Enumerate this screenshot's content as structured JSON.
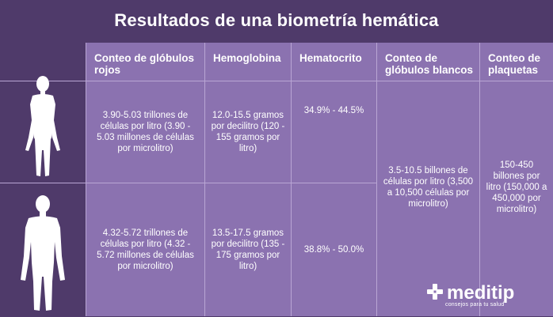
{
  "title": "Resultados de una biometría hemática",
  "headers": [
    "Conteo de glóbulos rojos",
    "Hemoglobina",
    "Hematocrito",
    "Conteo de glóbulos blancos",
    "Conteo de plaquetas"
  ],
  "rows": [
    {
      "figure_icon": "female-silhouette-icon",
      "rbc": "3.90-5.03 trillones de células por litro (3.90 - 5.03 millones de células por microlitro)",
      "hemoglobin": "12.0-15.5 gramos por decilitro (120 - 155 gramos por litro)",
      "hematocrit": "34.9% - 44.5%"
    },
    {
      "figure_icon": "male-silhouette-icon",
      "rbc": "4.32-5.72 trillones de células por litro (4.32 - 5.72 millones de células por microlitro)",
      "hemoglobin": "13.5-17.5 gramos por decilitro (135 - 175 gramos por litro)",
      "hematocrit": "38.8% - 50.0%"
    }
  ],
  "wbc": "3.5-10.5 billones de células por litro (3,500 a 10,500 células por microlitro)",
  "platelets": "150-450 billones por litro (150,000 a 450,000 por microlitro)",
  "logo": {
    "name": "meditip",
    "tagline": "consejos para tu salud",
    "icon": "medical-cross-icon"
  },
  "colors": {
    "dark_purple": "#4f3a6a",
    "light_purple": "#8b72b0",
    "divider": "#b9a6d4",
    "text": "#ffffff"
  }
}
